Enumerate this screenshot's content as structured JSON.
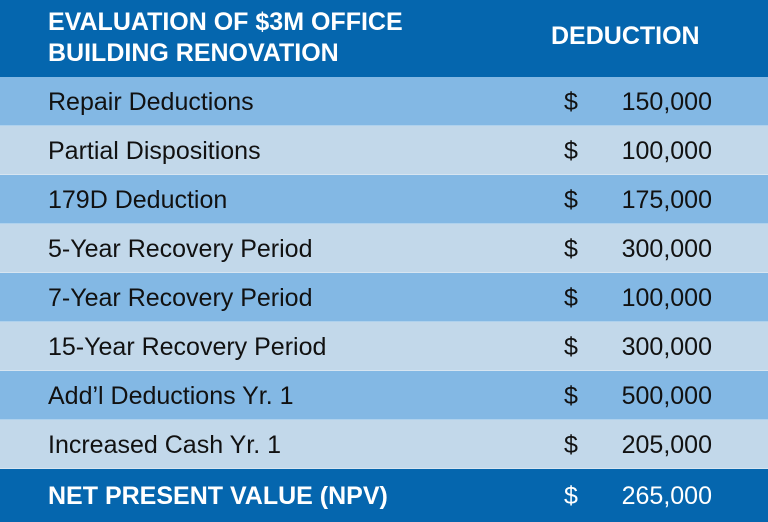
{
  "header": {
    "title_line1": "EVALUATION OF $3M OFFICE",
    "title_line2": "BUILDING RENOVATION",
    "column": "DEDUCTION"
  },
  "rows": [
    {
      "label": "Repair Deductions",
      "currency": "$",
      "amount": "150,000"
    },
    {
      "label": "Partial Dispositions",
      "currency": "$",
      "amount": "100,000"
    },
    {
      "label": "179D Deduction",
      "currency": "$",
      "amount": "175,000"
    },
    {
      "label": "5-Year Recovery Period",
      "currency": "$",
      "amount": "300,000"
    },
    {
      "label": "7-Year Recovery Period",
      "currency": "$",
      "amount": "100,000"
    },
    {
      "label": "15-Year Recovery Period",
      "currency": "$",
      "amount": "300,000"
    },
    {
      "label": "Add’l Deductions Yr. 1",
      "currency": "$",
      "amount": "500,000"
    },
    {
      "label": "Increased Cash Yr. 1",
      "currency": "$",
      "amount": "205,000"
    }
  ],
  "total": {
    "label": "NET PRESENT VALUE (NPV)",
    "currency": "$",
    "amount": "265,000"
  },
  "colors": {
    "header": "#0566ae",
    "row_dark": "#83b8e4",
    "row_light": "#c2d8ea"
  }
}
